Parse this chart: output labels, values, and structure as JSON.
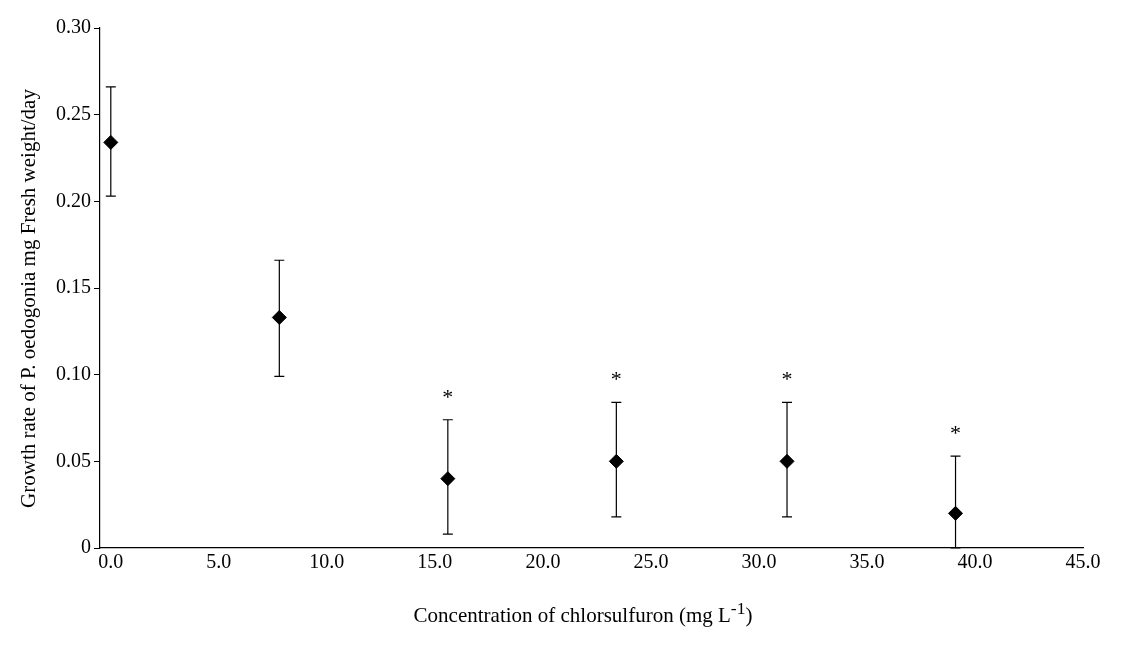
{
  "chart_data": {
    "type": "scatter",
    "xlabel": "Concentration of chlorsulfuron (mg L$^{-1}$)",
    "ylabel": "Growth rate of P. oedogonia mg Fresh weight/day",
    "x": [
      0,
      7.8,
      15.6,
      23.4,
      31.3,
      39.1
    ],
    "series": [
      {
        "color": "#000000",
        "values": [
          0.234,
          0.133,
          0.04,
          0.05,
          0.05,
          0.02
        ],
        "errors": [
          [
            0.203,
            0.266
          ],
          [
            0.099,
            0.166
          ],
          [
            0.008,
            0.074
          ],
          [
            0.018,
            0.084
          ],
          [
            0.018,
            0.084
          ],
          [
            0,
            0.053
          ]
        ]
      }
    ],
    "xlim": [
      -0.5,
      45
    ],
    "xticks": [
      {
        "value": 0,
        "label": "0.0"
      },
      {
        "value": 5,
        "label": "5.0"
      },
      {
        "value": 10,
        "label": "10.0"
      },
      {
        "value": 15,
        "label": "15.0"
      },
      {
        "value": 20,
        "label": "20.0"
      },
      {
        "value": 25,
        "label": "25.0"
      },
      {
        "value": 30,
        "label": "30.0"
      },
      {
        "value": 35,
        "label": "35.0"
      },
      {
        "value": 40,
        "label": "40.0"
      },
      {
        "value": 45,
        "label": "45.0"
      }
    ],
    "ylim": [
      0,
      0.3
    ],
    "yticks": [
      0,
      0.05,
      {
        "value": 0.1,
        "label": "0.10"
      },
      0.15,
      {
        "value": 0.2,
        "label": "0.20"
      },
      0.25,
      {
        "value": 0.3,
        "label": "0.30"
      }
    ],
    "annotations": [
      "*",
      "*",
      "*",
      "*"
    ],
    "marker": "diamond",
    "grid": false,
    "legend": false
  }
}
